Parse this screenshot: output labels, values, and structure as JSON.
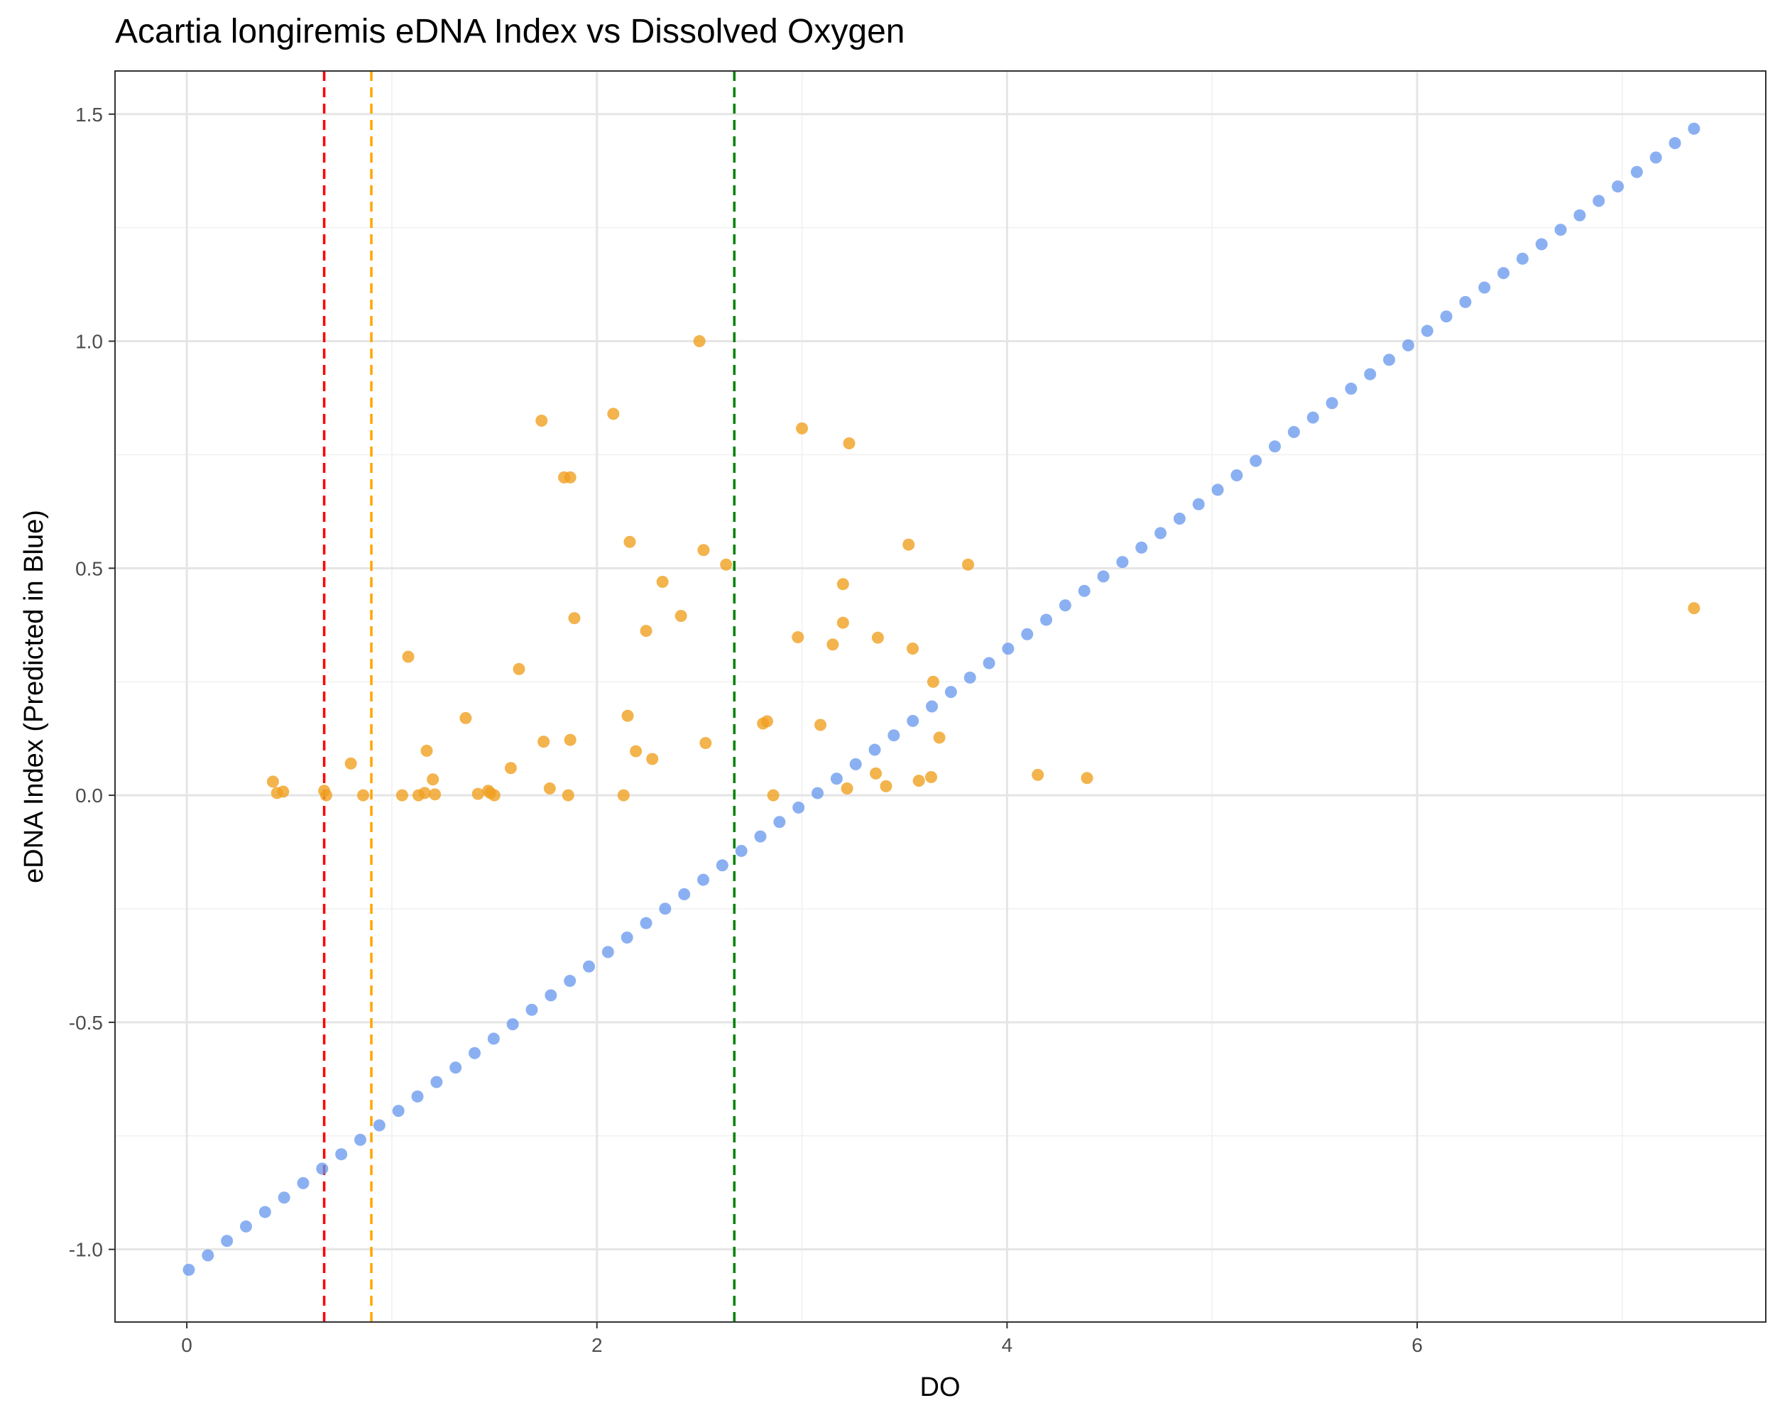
{
  "chart_data": {
    "type": "scatter",
    "title": "Acartia longiremis eDNA Index vs Dissolved Oxygen",
    "xlabel": "DO",
    "ylabel": "eDNA Index (Predicted in Blue)",
    "xlim": [
      -0.35,
      7.7
    ],
    "ylim": [
      -1.16,
      1.595
    ],
    "x_ticks": [
      0,
      2,
      4,
      6
    ],
    "x_tick_labels": [
      "0",
      "2",
      "4",
      "6"
    ],
    "y_ticks": [
      -1.0,
      -0.5,
      0.0,
      0.5,
      1.0,
      1.5
    ],
    "y_tick_labels": [
      "-1.0",
      "-0.5",
      "0.0",
      "0.5",
      "1.0",
      "1.5"
    ],
    "grid": true,
    "reference_lines": [
      {
        "x": 0.67,
        "color": "#ff0000",
        "style": "dashed"
      },
      {
        "x": 0.9,
        "color": "#ffa500",
        "style": "dashed"
      },
      {
        "x": 2.67,
        "color": "#008000",
        "style": "dashed"
      }
    ],
    "series": [
      {
        "name": "predicted",
        "color": "#6495ed",
        "x_start": 0.01,
        "x_end": 7.35,
        "n": 80,
        "y_start": -1.045,
        "y_end": 1.468
      },
      {
        "name": "observed",
        "color": "#f0a020",
        "points": [
          [
            0.42,
            0.03
          ],
          [
            0.44,
            0.005
          ],
          [
            0.47,
            0.008
          ],
          [
            0.67,
            0.01
          ],
          [
            0.68,
            0.0
          ],
          [
            0.8,
            0.07
          ],
          [
            0.86,
            0.0
          ],
          [
            1.05,
            0.0
          ],
          [
            1.08,
            0.305
          ],
          [
            1.13,
            0.0
          ],
          [
            1.16,
            0.005
          ],
          [
            1.17,
            0.098
          ],
          [
            1.2,
            0.035
          ],
          [
            1.21,
            0.002
          ],
          [
            1.36,
            0.17
          ],
          [
            1.42,
            0.003
          ],
          [
            1.47,
            0.01
          ],
          [
            1.48,
            0.005
          ],
          [
            1.5,
            0.0
          ],
          [
            1.58,
            0.06
          ],
          [
            1.62,
            0.278
          ],
          [
            1.73,
            0.825
          ],
          [
            1.74,
            0.118
          ],
          [
            1.77,
            0.015
          ],
          [
            1.84,
            0.7
          ],
          [
            1.86,
            0.0
          ],
          [
            1.87,
            0.7
          ],
          [
            1.87,
            0.122
          ],
          [
            1.89,
            0.39
          ],
          [
            2.08,
            0.84
          ],
          [
            2.13,
            0.0
          ],
          [
            2.15,
            0.175
          ],
          [
            2.16,
            0.558
          ],
          [
            2.19,
            0.097
          ],
          [
            2.24,
            0.362
          ],
          [
            2.27,
            0.08
          ],
          [
            2.32,
            0.47
          ],
          [
            2.41,
            0.395
          ],
          [
            2.5,
            1.0
          ],
          [
            2.52,
            0.54
          ],
          [
            2.53,
            0.115
          ],
          [
            2.63,
            0.508
          ],
          [
            2.81,
            0.158
          ],
          [
            2.83,
            0.163
          ],
          [
            2.86,
            0.0
          ],
          [
            2.98,
            0.348
          ],
          [
            3.0,
            0.808
          ],
          [
            3.09,
            0.155
          ],
          [
            3.15,
            0.332
          ],
          [
            3.2,
            0.38
          ],
          [
            3.2,
            0.465
          ],
          [
            3.22,
            0.015
          ],
          [
            3.23,
            0.775
          ],
          [
            3.36,
            0.048
          ],
          [
            3.37,
            0.347
          ],
          [
            3.41,
            0.02
          ],
          [
            3.52,
            0.552
          ],
          [
            3.54,
            0.323
          ],
          [
            3.57,
            0.032
          ],
          [
            3.63,
            0.04
          ],
          [
            3.64,
            0.25
          ],
          [
            3.67,
            0.127
          ],
          [
            3.81,
            0.508
          ],
          [
            4.15,
            0.045
          ],
          [
            4.39,
            0.038
          ],
          [
            7.35,
            0.412
          ]
        ]
      }
    ]
  }
}
